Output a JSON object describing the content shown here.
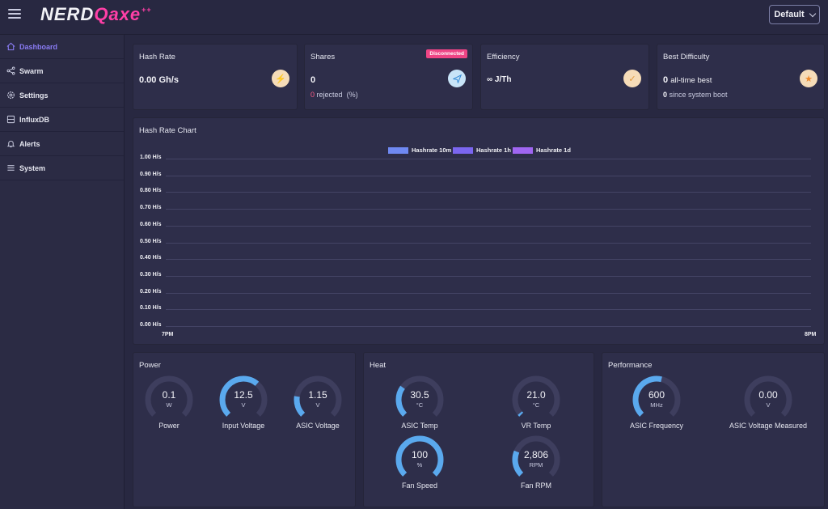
{
  "header": {
    "logo_part1": "NERD",
    "logo_part2": "Qaxe",
    "logo_stars": "++",
    "select_value": "Default"
  },
  "sidebar": {
    "items": [
      {
        "label": "Dashboard",
        "icon": "home-icon",
        "active": true
      },
      {
        "label": "Swarm",
        "icon": "share-icon"
      },
      {
        "label": "Settings",
        "icon": "gear-icon"
      },
      {
        "label": "InfluxDB",
        "icon": "database-icon"
      },
      {
        "label": "Alerts",
        "icon": "bell-icon"
      },
      {
        "label": "System",
        "icon": "list-icon"
      }
    ]
  },
  "stats": {
    "hashrate": {
      "title": "Hash Rate",
      "value": "0.00",
      "unit": "Gh/s"
    },
    "shares": {
      "title": "Shares",
      "badge": "Disconnected",
      "value": "0",
      "rejected_count": "0",
      "rejected_label": "rejected",
      "rejected_pct": "(%)"
    },
    "efficiency": {
      "title": "Efficiency",
      "value": "∞ J/Th"
    },
    "difficulty": {
      "title": "Best Difficulty",
      "alltime_value": "0",
      "alltime_label": "all-time best",
      "boot_value": "0",
      "boot_label": "since system boot"
    }
  },
  "chart": {
    "title": "Hash Rate Chart",
    "chart_data": {
      "type": "line",
      "series": [
        {
          "name": "Hashrate 10m",
          "color": "#6f89f2",
          "values": []
        },
        {
          "name": "Hashrate 1h",
          "color": "#7b66f0",
          "values": []
        },
        {
          "name": "Hashrate 1d",
          "color": "#a066f2",
          "values": []
        }
      ],
      "x_ticks": [
        "7PM",
        "8PM"
      ],
      "y_ticks": [
        "1.00 H/s",
        "0.90 H/s",
        "0.80 H/s",
        "0.70 H/s",
        "0.60 H/s",
        "0.50 H/s",
        "0.40 H/s",
        "0.30 H/s",
        "0.20 H/s",
        "0.10 H/s",
        "0.00 H/s"
      ],
      "ylim": [
        0,
        1
      ],
      "legend": "top-center"
    }
  },
  "power": {
    "title": "Power",
    "gauges": [
      {
        "value": "0.1",
        "unit": "W",
        "label": "Power",
        "fraction": 0.0
      },
      {
        "value": "12.5",
        "unit": "V",
        "label": "Input Voltage",
        "fraction": 0.65
      },
      {
        "value": "1.15",
        "unit": "V",
        "label": "ASIC Voltage",
        "fraction": 0.2
      }
    ]
  },
  "heat": {
    "title": "Heat",
    "gauges": [
      {
        "value": "30.5",
        "unit": "°C",
        "label": "ASIC Temp",
        "fraction": 0.3
      },
      {
        "value": "21.0",
        "unit": "°C",
        "label": "VR Temp",
        "fraction": 0.02
      },
      {
        "value": "100",
        "unit": "%",
        "label": "Fan Speed",
        "fraction": 1.0
      },
      {
        "value": "2,806",
        "unit": "RPM",
        "label": "Fan RPM",
        "fraction": 0.25
      }
    ]
  },
  "performance": {
    "title": "Performance",
    "gauges": [
      {
        "value": "600",
        "unit": "MHz",
        "label": "ASIC Frequency",
        "fraction": 0.55
      },
      {
        "value": "0.00",
        "unit": "V",
        "label": "ASIC Voltage Measured",
        "fraction": 0.0
      }
    ]
  },
  "colors": {
    "accent": "#8a7cf5",
    "gauge_fill": "#5aa9ee",
    "gauge_track": "#3e3e5e",
    "badge": "#ee4585"
  }
}
